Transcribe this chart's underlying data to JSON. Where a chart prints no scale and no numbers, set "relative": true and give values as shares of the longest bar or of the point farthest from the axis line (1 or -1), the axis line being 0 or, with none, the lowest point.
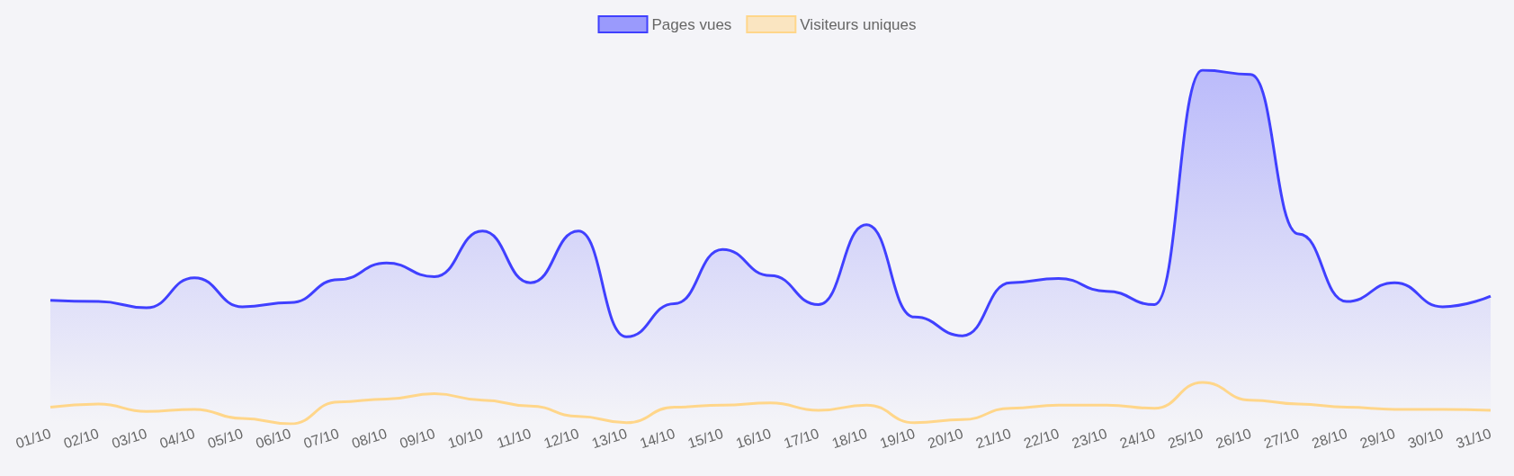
{
  "chart_data": {
    "type": "area",
    "relative": true,
    "legend": "top",
    "grid": false,
    "marker": "none",
    "categories": [
      "01/10",
      "02/10",
      "03/10",
      "04/10",
      "05/10",
      "06/10",
      "07/10",
      "08/10",
      "09/10",
      "10/10",
      "11/10",
      "12/10",
      "13/10",
      "14/10",
      "15/10",
      "16/10",
      "17/10",
      "18/10",
      "19/10",
      "20/10",
      "21/10",
      "22/10",
      "23/10",
      "24/10",
      "25/10",
      "26/10",
      "27/10",
      "28/10",
      "29/10",
      "30/10",
      "31/10"
    ],
    "series": [
      {
        "name": "Pages vues",
        "color": "#4040ff",
        "values": [
          0.349,
          0.346,
          0.328,
          0.413,
          0.331,
          0.343,
          0.408,
          0.455,
          0.416,
          0.545,
          0.399,
          0.545,
          0.246,
          0.34,
          0.493,
          0.419,
          0.337,
          0.563,
          0.302,
          0.249,
          0.399,
          0.411,
          0.375,
          0.337,
          1,
          0.988,
          0.537,
          0.346,
          0.399,
          0.331,
          0.361
        ]
      },
      {
        "name": "Visiteurs uniques",
        "type": "line",
        "color": "#ffd68a",
        "values": [
          0.047,
          0.056,
          0.035,
          0.041,
          0.015,
          0,
          0.062,
          0.07,
          0.085,
          0.067,
          0.05,
          0.021,
          0.003,
          0.047,
          0.053,
          0.059,
          0.038,
          0.053,
          0.003,
          0.012,
          0.044,
          0.053,
          0.053,
          0.044,
          0.117,
          0.067,
          0.056,
          0.047,
          0.041,
          0.041,
          0.038
        ]
      }
    ]
  }
}
